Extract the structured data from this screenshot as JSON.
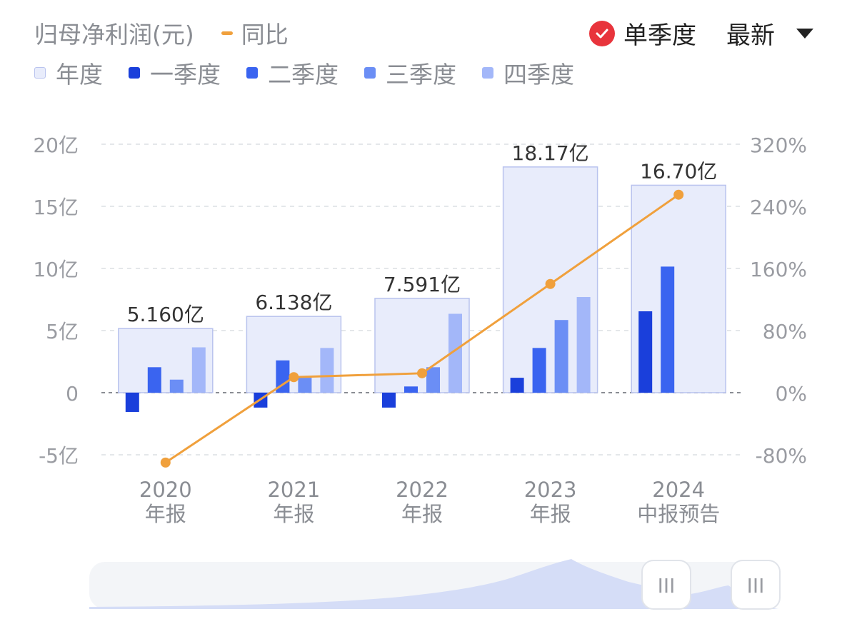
{
  "header": {
    "title": "归母净利润(元)",
    "line_legend": "同比",
    "toggle_label": "单季度",
    "period_select": "最新"
  },
  "legend": [
    {
      "label": "年度",
      "color": "#e8ecfb",
      "border": "#b9c3ee"
    },
    {
      "label": "一季度",
      "color": "#1a3fdb"
    },
    {
      "label": "二季度",
      "color": "#3a64f0"
    },
    {
      "label": "三季度",
      "color": "#6b8ef5"
    },
    {
      "label": "四季度",
      "color": "#a3b7f9"
    }
  ],
  "colors": {
    "annual_fill": "#e8ecfb",
    "annual_stroke": "#b9c3ee",
    "q1": "#1a3fdb",
    "q2": "#3a64f0",
    "q3": "#6b8ef5",
    "q4": "#a3b7f9",
    "line": "#f0a03c",
    "check": "#e8343c"
  },
  "chart_data": {
    "type": "bar",
    "categories": [
      {
        "line1": "2020",
        "line2": "年报"
      },
      {
        "line1": "2021",
        "line2": "年报"
      },
      {
        "line1": "2022",
        "line2": "年报"
      },
      {
        "line1": "2023",
        "line2": "年报"
      },
      {
        "line1": "2024",
        "line2": "中报预告"
      }
    ],
    "annual": [
      5.16,
      6.138,
      7.591,
      18.17,
      16.7
    ],
    "annual_labels": [
      "5.160亿",
      "6.138亿",
      "7.591亿",
      "18.17亿",
      "16.70亿"
    ],
    "quarters": [
      [
        -1.55,
        2.05,
        1.05,
        3.65
      ],
      [
        -1.2,
        2.6,
        1.2,
        3.6
      ],
      [
        -1.2,
        0.5,
        2.05,
        6.35
      ],
      [
        1.2,
        3.6,
        5.85,
        7.7
      ],
      [
        6.55,
        10.15,
        null,
        null
      ]
    ],
    "yoy": [
      -90,
      20,
      25,
      140,
      255
    ],
    "y_left": {
      "min": -5,
      "max": 20,
      "ticks": [
        20,
        15,
        10,
        5,
        0,
        -5
      ],
      "labels": [
        "20亿",
        "15亿",
        "10亿",
        "5亿",
        "0",
        "-5亿"
      ]
    },
    "y_right": {
      "min": -80,
      "max": 320,
      "ticks": [
        320,
        240,
        160,
        80,
        0,
        -80
      ],
      "labels": [
        "320%",
        "240%",
        "160%",
        "80%",
        "0%",
        "-80%"
      ]
    },
    "grid": true
  },
  "slider": {
    "handle_left": "III",
    "handle_right": "III"
  }
}
